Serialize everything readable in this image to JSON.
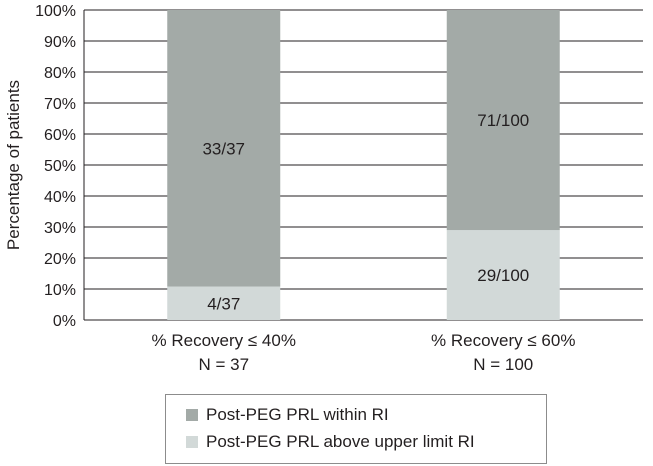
{
  "chart_data": {
    "type": "bar",
    "stacked": true,
    "ylabel": "Percentage of patients",
    "ylim": [
      0,
      100
    ],
    "yticks": [
      "0%",
      "10%",
      "20%",
      "30%",
      "40%",
      "50%",
      "60%",
      "70%",
      "80%",
      "90%",
      "100%"
    ],
    "grid": true,
    "legend_position": "bottom",
    "categories": [
      [
        "% Recovery ≤ 40%",
        "N = 37"
      ],
      [
        "% Recovery ≤ 60%",
        "N = 100"
      ]
    ],
    "series": [
      {
        "name": "Post-PEG PRL above upper limit RI",
        "color": "#d2d9d8",
        "values": [
          10.8,
          29
        ],
        "labels": [
          "4/37",
          "29/100"
        ]
      },
      {
        "name": "Post-PEG PRL within RI",
        "color": "#a3aaa7",
        "values": [
          89.2,
          71
        ],
        "labels": [
          "33/37",
          "71/100"
        ]
      }
    ],
    "legend_order": [
      1,
      0
    ]
  }
}
